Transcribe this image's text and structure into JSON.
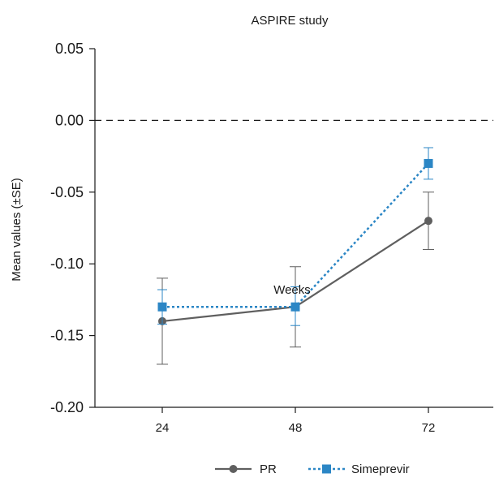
{
  "chart_data": {
    "type": "line",
    "title": "ASPIRE study",
    "xlabel": "Weeks",
    "ylabel": "Mean values (±SE)",
    "categories": [
      "24",
      "48",
      "72"
    ],
    "ylim": [
      -0.2,
      0.05
    ],
    "yticks": [
      "0.05",
      "0.00",
      "-0.05",
      "-0.10",
      "-0.15",
      "-0.20"
    ],
    "reference_line": 0.0,
    "legend_position": "bottom-center",
    "series": [
      {
        "name": "PR",
        "values": [
          -0.14,
          -0.13,
          -0.07
        ],
        "error_low": [
          -0.17,
          -0.158,
          -0.09
        ],
        "error_high": [
          -0.11,
          -0.102,
          -0.05
        ],
        "color": "#5f5f5f",
        "marker": "circle",
        "line": "solid"
      },
      {
        "name": "Simeprevir",
        "values": [
          -0.13,
          -0.13,
          -0.03
        ],
        "error_low": [
          -0.142,
          -0.143,
          -0.041
        ],
        "error_high": [
          -0.118,
          -0.116,
          -0.019
        ],
        "color": "#2b86c5",
        "marker": "square",
        "line": "dotted"
      }
    ]
  }
}
